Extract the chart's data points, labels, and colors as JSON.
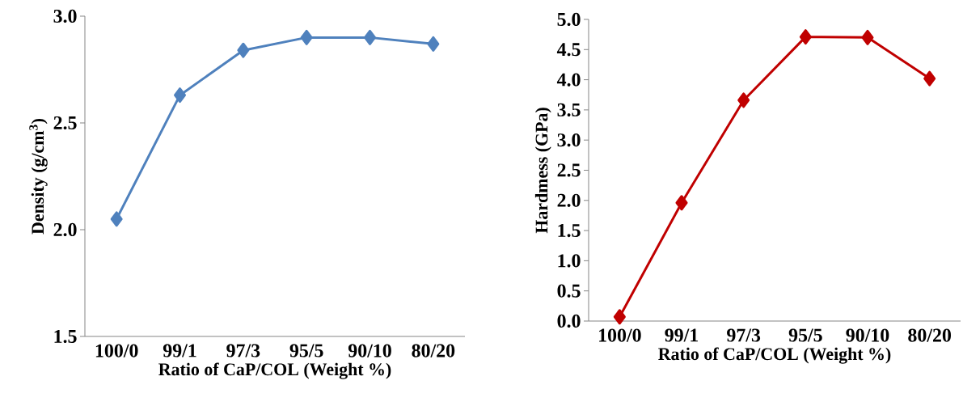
{
  "chart_data": [
    {
      "type": "line",
      "xlabel": "Ratio of CaP/COL (Weight %)",
      "ylabel": "Density (g/cm$^{3}$)",
      "categories": [
        "100/0",
        "99/1",
        "97/3",
        "95/5",
        "90/10",
        "80/20"
      ],
      "series": [
        {
          "color": "#4f81bd",
          "values": [
            2.05,
            2.63,
            2.84,
            2.9,
            2.9,
            2.87
          ]
        }
      ],
      "ylim": [
        1.5,
        3.0
      ],
      "yticks": [
        {
          "value": 1.5,
          "label": "1.5"
        },
        {
          "value": 2.0,
          "label": "2.0"
        },
        {
          "value": 2.5,
          "label": "2.5"
        },
        {
          "value": 3.0,
          "label": "3.0"
        }
      ],
      "marker": "diamond",
      "grid": false
    },
    {
      "type": "line",
      "xlabel": "Ratio of CaP/COL (Weight %)",
      "ylabel": "Hardmess (GPa)",
      "categories": [
        "100/0",
        "99/1",
        "97/3",
        "95/5",
        "90/10",
        "80/20"
      ],
      "series": [
        {
          "color": "#c00000",
          "values": [
            0.07,
            1.96,
            3.66,
            4.71,
            4.7,
            4.02
          ]
        }
      ],
      "ylim": [
        0.0,
        5.0
      ],
      "yticks": [
        {
          "value": 0.0,
          "label": "0.0"
        },
        {
          "value": 0.5,
          "label": "0.5"
        },
        {
          "value": 1.0,
          "label": "1.0"
        },
        {
          "value": 1.5,
          "label": "1.5"
        },
        {
          "value": 2.0,
          "label": "2.0"
        },
        {
          "value": 2.5,
          "label": "2.5"
        },
        {
          "value": 3.0,
          "label": "3.0"
        },
        {
          "value": 3.5,
          "label": "3.5"
        },
        {
          "value": 4.0,
          "label": "4.0"
        },
        {
          "value": 4.5,
          "label": "4.5"
        },
        {
          "value": 5.0,
          "label": "5.0"
        }
      ],
      "marker": "diamond",
      "grid": false
    }
  ]
}
